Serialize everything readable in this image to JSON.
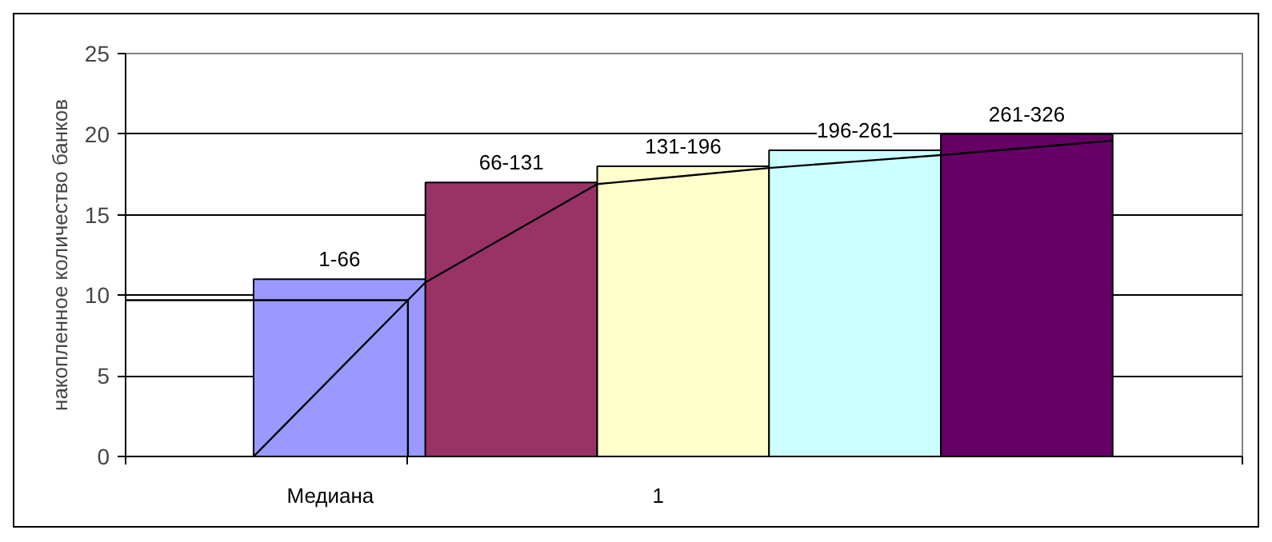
{
  "chart_data": {
    "type": "bar",
    "ylabel": "накопленное количество банков",
    "categories": [
      null,
      null,
      null,
      null,
      null,
      null,
      null,
      null,
      null,
      null,
      null
    ],
    "ylim": [
      0,
      25
    ],
    "yticks": [
      0,
      5,
      10,
      15,
      20,
      25
    ],
    "grid": "y",
    "annotations": [
      "1"
    ],
    "ref_lines": [
      {
        "axis": "y",
        "value": 9.7,
        "label": "Медиана",
        "color": "#000000"
      }
    ],
    "series": [
      {
        "name": "1-66",
        "color": "#9999ff",
        "values": [
          null,
          11,
          null,
          null,
          null,
          null,
          null,
          null,
          null,
          null,
          null
        ]
      },
      {
        "name": "66-131",
        "color": "#993366",
        "values": [
          null,
          null,
          null,
          17,
          null,
          null,
          null,
          null,
          null,
          null,
          null
        ]
      },
      {
        "name": "131-196",
        "color": "#ffffcc",
        "values": [
          null,
          null,
          null,
          null,
          null,
          18,
          null,
          null,
          null,
          null,
          null
        ]
      },
      {
        "name": "196-261",
        "color": "#ccffff",
        "values": [
          null,
          null,
          null,
          null,
          null,
          null,
          null,
          19,
          null,
          null,
          null
        ]
      },
      {
        "name": "261-326",
        "color": "#660066",
        "values": [
          null,
          null,
          null,
          null,
          null,
          null,
          null,
          null,
          null,
          20,
          null
        ]
      },
      {
        "type": "line",
        "color": "#000000",
        "values": [
          0,
          5.4,
          10.8,
          13.85,
          16.9,
          17.4,
          17.9,
          18.3,
          18.7,
          19.15,
          19.6
        ]
      }
    ]
  }
}
